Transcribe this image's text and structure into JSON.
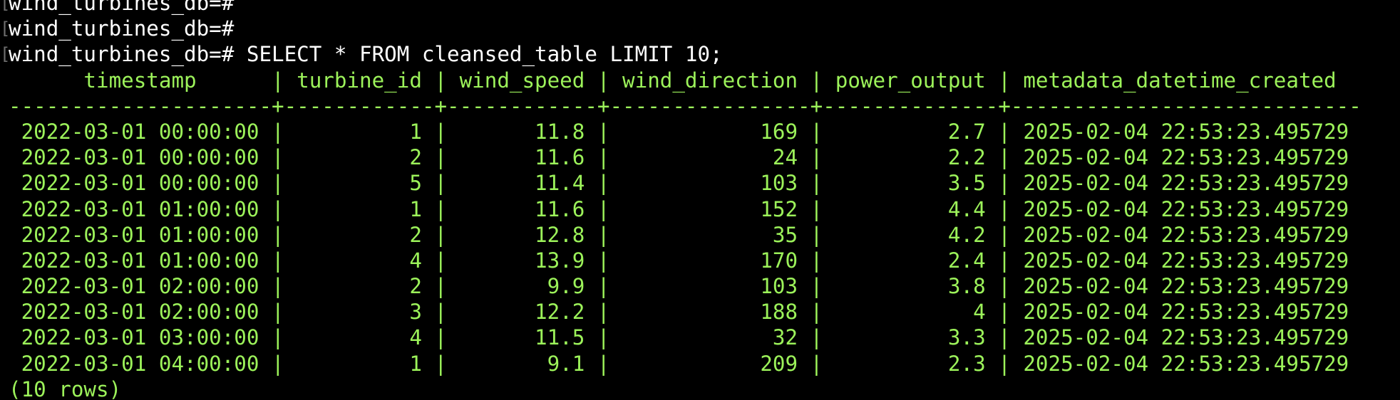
{
  "terminal": {
    "lines": [
      {
        "type": "prompt",
        "marker": "[",
        "text": "wind_turbines_db=#"
      },
      {
        "type": "prompt",
        "marker": "[",
        "text": "wind_turbines_db=#"
      },
      {
        "type": "prompt",
        "marker": "[",
        "text": "wind_turbines_db=# SELECT * FROM cleansed_table LIMIT 10;"
      },
      {
        "type": "output",
        "text": "      timestamp      | turbine_id | wind_speed | wind_direction | power_output | metadata_datetime_created"
      },
      {
        "type": "output",
        "text": "---------------------+------------+------------+----------------+--------------+----------------------------"
      },
      {
        "type": "output",
        "text": " 2022-03-01 00:00:00 |          1 |       11.8 |            169 |          2.7 | 2025-02-04 22:53:23.495729"
      },
      {
        "type": "output",
        "text": " 2022-03-01 00:00:00 |          2 |       11.6 |             24 |          2.2 | 2025-02-04 22:53:23.495729"
      },
      {
        "type": "output",
        "text": " 2022-03-01 00:00:00 |          5 |       11.4 |            103 |          3.5 | 2025-02-04 22:53:23.495729"
      },
      {
        "type": "output",
        "text": " 2022-03-01 01:00:00 |          1 |       11.6 |            152 |          4.4 | 2025-02-04 22:53:23.495729"
      },
      {
        "type": "output",
        "text": " 2022-03-01 01:00:00 |          2 |       12.8 |             35 |          4.2 | 2025-02-04 22:53:23.495729"
      },
      {
        "type": "output",
        "text": " 2022-03-01 01:00:00 |          4 |       13.9 |            170 |          2.4 | 2025-02-04 22:53:23.495729"
      },
      {
        "type": "output",
        "text": " 2022-03-01 02:00:00 |          2 |        9.9 |            103 |          3.8 | 2025-02-04 22:53:23.495729"
      },
      {
        "type": "output",
        "text": " 2022-03-01 02:00:00 |          3 |       12.2 |            188 |            4 | 2025-02-04 22:53:23.495729"
      },
      {
        "type": "output",
        "text": " 2022-03-01 03:00:00 |          4 |       11.5 |             32 |          3.3 | 2025-02-04 22:53:23.495729"
      },
      {
        "type": "output",
        "text": " 2022-03-01 04:00:00 |          1 |        9.1 |            209 |          2.3 | 2025-02-04 22:53:23.495729"
      },
      {
        "type": "output",
        "text": "(10 rows)"
      }
    ]
  },
  "colors": {
    "background": "#000000",
    "prompt_text": "#ffffff",
    "output_text": "#9cf25a",
    "marker": "#6e6e6e"
  }
}
